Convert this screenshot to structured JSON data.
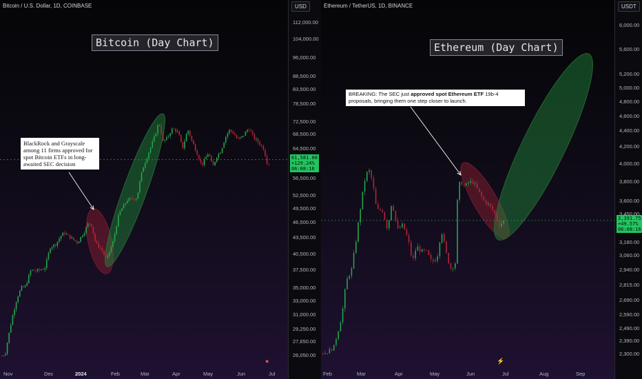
{
  "chart_data": [
    {
      "type": "candlestick",
      "symbol": "Bitcoin / U.S. Dollar, 1D, COINBASE",
      "currency": "USD",
      "banner": "Bitcoin (Day Chart)",
      "annotation": "BlackRock and Grayscale among 11 firms approved for spot Bitcoin ETFs in long-awaited SEC decision",
      "price_label": {
        "price": "61,581.08",
        "change": "+129.24%",
        "countdown": "06:08:16"
      },
      "current_price": 61581,
      "y_ticks": [
        {
          "v": 112000,
          "label": "112,000.00"
        },
        {
          "v": 104000,
          "label": "104,000.00"
        },
        {
          "v": 96000,
          "label": "96,000.00"
        },
        {
          "v": 88500,
          "label": "88,500.00"
        },
        {
          "v": 83500,
          "label": "83,500.00"
        },
        {
          "v": 78500,
          "label": "78,500.00"
        },
        {
          "v": 72500,
          "label": "72,500.00"
        },
        {
          "v": 68500,
          "label": "68,500.00"
        },
        {
          "v": 64500,
          "label": "64,500.00"
        },
        {
          "v": 56500,
          "label": "56,500.00"
        },
        {
          "v": 52500,
          "label": "52,500.00"
        },
        {
          "v": 49500,
          "label": "49,500.00"
        },
        {
          "v": 46500,
          "label": "46,500.00"
        },
        {
          "v": 43500,
          "label": "43,500.00"
        },
        {
          "v": 40500,
          "label": "40,500.00"
        },
        {
          "v": 37500,
          "label": "37,500.00"
        },
        {
          "v": 35000,
          "label": "35,000.00"
        },
        {
          "v": 33000,
          "label": "33,000.00"
        },
        {
          "v": 31000,
          "label": "31,000.00"
        },
        {
          "v": 29250,
          "label": "29,250.00"
        },
        {
          "v": 27650,
          "label": "27,650.00"
        },
        {
          "v": 26050,
          "label": "26,050.00"
        }
      ],
      "x_ticks": [
        {
          "label": "Nov",
          "bold": false
        },
        {
          "label": "Dec",
          "bold": false
        },
        {
          "label": "2024",
          "bold": true
        },
        {
          "label": "Feb",
          "bold": false
        },
        {
          "label": "Mar",
          "bold": false
        },
        {
          "label": "Apr",
          "bold": false
        },
        {
          "label": "May",
          "bold": false
        },
        {
          "label": "Jun",
          "bold": false
        },
        {
          "label": "Jul",
          "bold": false
        }
      ],
      "path_anchors": [
        [
          0,
          24000
        ],
        [
          12,
          29500
        ],
        [
          22,
          33500
        ],
        [
          28,
          35000
        ],
        [
          34,
          35200
        ],
        [
          42,
          37500
        ],
        [
          50,
          37400
        ],
        [
          62,
          37800
        ],
        [
          70,
          41800
        ],
        [
          78,
          42300
        ],
        [
          86,
          43900
        ],
        [
          90,
          44500
        ],
        [
          102,
          43300
        ],
        [
          110,
          42600
        ],
        [
          120,
          44800
        ],
        [
          126,
          46500
        ],
        [
          130,
          46000
        ],
        [
          136,
          42500
        ],
        [
          144,
          41500
        ],
        [
          152,
          39500
        ],
        [
          162,
          43000
        ],
        [
          170,
          48500
        ],
        [
          182,
          51500
        ],
        [
          196,
          52000
        ],
        [
          204,
          59000
        ],
        [
          212,
          63000
        ],
        [
          222,
          68000
        ],
        [
          228,
          72500
        ],
        [
          234,
          66500
        ],
        [
          240,
          67500
        ],
        [
          248,
          70500
        ],
        [
          256,
          69000
        ],
        [
          262,
          64500
        ],
        [
          270,
          70000
        ],
        [
          276,
          66500
        ],
        [
          282,
          64000
        ],
        [
          290,
          60000
        ],
        [
          300,
          63500
        ],
        [
          306,
          59500
        ],
        [
          312,
          62500
        ],
        [
          318,
          64000
        ],
        [
          324,
          67500
        ],
        [
          330,
          69800
        ],
        [
          336,
          69000
        ],
        [
          342,
          67000
        ],
        [
          350,
          68000
        ],
        [
          358,
          70500
        ],
        [
          366,
          67500
        ],
        [
          374,
          66000
        ],
        [
          380,
          64500
        ],
        [
          386,
          60000
        ],
        [
          390,
          61581
        ]
      ],
      "highlights": [
        {
          "kind": "red",
          "label": "pullback"
        },
        {
          "kind": "green",
          "label": "rally"
        }
      ]
    },
    {
      "type": "candlestick",
      "symbol": "Ethereum / TetherUS, 1D, BINANCE",
      "currency": "USDT",
      "banner": "Ethereum (Day Chart)",
      "annotation_prefix": "BREAKING: The SEC just ",
      "annotation_bold": "approved spot Ethereum ETF",
      "annotation_suffix": " 19b-4 proposals, bringing them one step closer to launch.",
      "price_label": {
        "price": "3,391.75",
        "change": "+49.57%",
        "countdown": "06:08:16"
      },
      "current_price": 3391.75,
      "y_ticks": [
        {
          "v": 6000,
          "label": "6,000.00"
        },
        {
          "v": 5600,
          "label": "5,600.00"
        },
        {
          "v": 5200,
          "label": "5,200.00"
        },
        {
          "v": 5000,
          "label": "5,000.00"
        },
        {
          "v": 4800,
          "label": "4,800.00"
        },
        {
          "v": 4600,
          "label": "4,600.00"
        },
        {
          "v": 4400,
          "label": "4,400.00"
        },
        {
          "v": 4200,
          "label": "4,200.00"
        },
        {
          "v": 4000,
          "label": "4,000.00"
        },
        {
          "v": 3800,
          "label": "3,800.00"
        },
        {
          "v": 3600,
          "label": "3,600.00"
        },
        {
          "v": 3450,
          "label": "3,450.00"
        },
        {
          "v": 3180,
          "label": "3,180.00"
        },
        {
          "v": 3060,
          "label": "3,060.00"
        },
        {
          "v": 2940,
          "label": "2,940.00"
        },
        {
          "v": 2815,
          "label": "2,815.00"
        },
        {
          "v": 2690,
          "label": "2,690.00"
        },
        {
          "v": 2590,
          "label": "2,590.00"
        },
        {
          "v": 2490,
          "label": "2,490.00"
        },
        {
          "v": 2390,
          "label": "2,390.00"
        },
        {
          "v": 2300,
          "label": "2,300.00"
        }
      ],
      "x_ticks": [
        {
          "label": "Feb",
          "bold": false
        },
        {
          "label": "Mar",
          "bold": false
        },
        {
          "label": "Apr",
          "bold": false
        },
        {
          "label": "May",
          "bold": false
        },
        {
          "label": "Jun",
          "bold": false
        },
        {
          "label": "Jul",
          "bold": false
        },
        {
          "label": "Aug",
          "bold": false
        },
        {
          "label": "Sep",
          "bold": false
        }
      ],
      "path_anchors": [
        [
          0,
          2300
        ],
        [
          8,
          2320
        ],
        [
          16,
          2350
        ],
        [
          22,
          2470
        ],
        [
          28,
          2600
        ],
        [
          34,
          2850
        ],
        [
          42,
          2950
        ],
        [
          48,
          3200
        ],
        [
          54,
          3500
        ],
        [
          60,
          3800
        ],
        [
          66,
          3950
        ],
        [
          72,
          3800
        ],
        [
          78,
          3500
        ],
        [
          86,
          3500
        ],
        [
          94,
          3300
        ],
        [
          100,
          3600
        ],
        [
          108,
          3300
        ],
        [
          116,
          3350
        ],
        [
          124,
          3200
        ],
        [
          130,
          3000
        ],
        [
          136,
          3150
        ],
        [
          142,
          3100
        ],
        [
          150,
          3100
        ],
        [
          158,
          3000
        ],
        [
          166,
          3050
        ],
        [
          172,
          3300
        ],
        [
          180,
          3050
        ],
        [
          186,
          2950
        ],
        [
          192,
          3000
        ],
        [
          196,
          3750
        ],
        [
          200,
          3800
        ],
        [
          206,
          3750
        ],
        [
          212,
          3800
        ],
        [
          218,
          3800
        ],
        [
          226,
          3700
        ],
        [
          234,
          3600
        ],
        [
          242,
          3550
        ],
        [
          250,
          3450
        ],
        [
          256,
          3350
        ],
        [
          264,
          3391.75
        ]
      ],
      "highlights": [
        {
          "kind": "red",
          "label": "pullback"
        },
        {
          "kind": "green",
          "label": "projection"
        }
      ]
    }
  ]
}
